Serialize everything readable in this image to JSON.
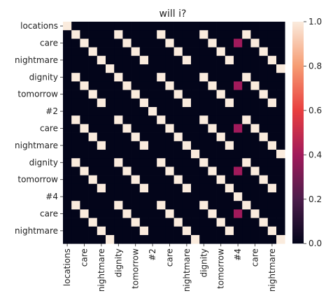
{
  "chart_data": {
    "type": "heatmap",
    "title": "will i?",
    "xlabel": "",
    "ylabel": "",
    "x_labels": [
      "locations",
      "",
      "care",
      "",
      "nightmare",
      "",
      "dignity",
      "",
      "tomorrow",
      "",
      "#2",
      "",
      "care",
      "",
      "nightmare",
      "",
      "dignity",
      "",
      "tomorrow",
      "",
      "#4",
      "",
      "care",
      "",
      "nightmare",
      ""
    ],
    "y_labels": [
      "locations",
      "",
      "care",
      "",
      "nightmare",
      "",
      "dignity",
      "",
      "tomorrow",
      "",
      "#2",
      "",
      "care",
      "",
      "nightmare",
      "",
      "dignity",
      "",
      "tomorrow",
      "",
      "#4",
      "",
      "care",
      "",
      "nightmare",
      ""
    ],
    "value_range": [
      0,
      1
    ],
    "colorbar_ticks": [
      0.0,
      0.2,
      0.4,
      0.6,
      0.8,
      1.0
    ],
    "colorbar_tick_labels": [
      "0.0",
      "0.2",
      "0.4",
      "0.6",
      "0.8",
      "1.0"
    ],
    "colormap": [
      "#03051a",
      "#4c1d4b",
      "#a11a5b",
      "#e83f3f",
      "#f69c73",
      "#faebdd"
    ],
    "values": [
      [
        1,
        0,
        0,
        0,
        0,
        0,
        0,
        0,
        0,
        0,
        0,
        0,
        0,
        0,
        0,
        0,
        0,
        0,
        0,
        0,
        0,
        0,
        0,
        0,
        0,
        0
      ],
      [
        0,
        1,
        0,
        0,
        0,
        0,
        1,
        0,
        0,
        0,
        0,
        1,
        0,
        0,
        0,
        0,
        1,
        0,
        0,
        0,
        0,
        1,
        0,
        0,
        0,
        0
      ],
      [
        0,
        0,
        1,
        0,
        0,
        0,
        0,
        1,
        0,
        0,
        0,
        0,
        1,
        0,
        0,
        0,
        0,
        1,
        0,
        0,
        0.4,
        0,
        1,
        0,
        0,
        0
      ],
      [
        0,
        0,
        0,
        1,
        0,
        0,
        0,
        0,
        1,
        0,
        0,
        0,
        0,
        1,
        0,
        0,
        0,
        0,
        1,
        0,
        0,
        0,
        0,
        1,
        0,
        0
      ],
      [
        0,
        0,
        0,
        0,
        1,
        0,
        0,
        0,
        0,
        1,
        0,
        0,
        0,
        0,
        1,
        0,
        0,
        0,
        0,
        1,
        0,
        0,
        0,
        0,
        1,
        0
      ],
      [
        0,
        0,
        0,
        0,
        0,
        1,
        0,
        0,
        0,
        0,
        0,
        0,
        0,
        0,
        0,
        0,
        0,
        0,
        0,
        0,
        0,
        0,
        0,
        0,
        0,
        1
      ],
      [
        0,
        1,
        0,
        0,
        0,
        0,
        1,
        0,
        0,
        0,
        0,
        1,
        0,
        0,
        0,
        0,
        1,
        0,
        0,
        0,
        0,
        1,
        0,
        0,
        0,
        0
      ],
      [
        0,
        0,
        1,
        0,
        0,
        0,
        0,
        1,
        0,
        0,
        0,
        0,
        1,
        0,
        0,
        0,
        0,
        1,
        0,
        0,
        0.4,
        0,
        1,
        0,
        0,
        0
      ],
      [
        0,
        0,
        0,
        1,
        0,
        0,
        0,
        0,
        1,
        0,
        0,
        0,
        0,
        1,
        0,
        0,
        0,
        0,
        1,
        0,
        0,
        0,
        0,
        1,
        0,
        0
      ],
      [
        0,
        0,
        0,
        0,
        1,
        0,
        0,
        0,
        0,
        1,
        0,
        0,
        0,
        0,
        1,
        0,
        0,
        0,
        0,
        1,
        0,
        0,
        0,
        0,
        1,
        0
      ],
      [
        0,
        0,
        0,
        0,
        0,
        0,
        0,
        0,
        0,
        0,
        1,
        0,
        0,
        0,
        0,
        0,
        0,
        0,
        0,
        0,
        0,
        0,
        0,
        0,
        0,
        0
      ],
      [
        0,
        1,
        0,
        0,
        0,
        0,
        1,
        0,
        0,
        0,
        0,
        1,
        0,
        0,
        0,
        0,
        1,
        0,
        0,
        0,
        0,
        1,
        0,
        0,
        0,
        0
      ],
      [
        0,
        0,
        1,
        0,
        0,
        0,
        0,
        1,
        0,
        0,
        0,
        0,
        1,
        0,
        0,
        0,
        0,
        1,
        0,
        0,
        0.4,
        0,
        1,
        0,
        0,
        0
      ],
      [
        0,
        0,
        0,
        1,
        0,
        0,
        0,
        0,
        1,
        0,
        0,
        0,
        0,
        1,
        0,
        0,
        0,
        0,
        1,
        0,
        0,
        0,
        0,
        1,
        0,
        0
      ],
      [
        0,
        0,
        0,
        0,
        1,
        0,
        0,
        0,
        0,
        1,
        0,
        0,
        0,
        0,
        1,
        0,
        0,
        0,
        0,
        1,
        0,
        0,
        0,
        0,
        1,
        0
      ],
      [
        0,
        0,
        0,
        0,
        0,
        0,
        0,
        0,
        0,
        0,
        0,
        0,
        0,
        0,
        0,
        1,
        0,
        0,
        0,
        0,
        0,
        0,
        0,
        0,
        0,
        1
      ],
      [
        0,
        1,
        0,
        0,
        0,
        0,
        1,
        0,
        0,
        0,
        0,
        1,
        0,
        0,
        0,
        0,
        1,
        0,
        0,
        0,
        0,
        1,
        0,
        0,
        0,
        0
      ],
      [
        0,
        0,
        1,
        0,
        0,
        0,
        0,
        1,
        0,
        0,
        0,
        0,
        1,
        0,
        0,
        0,
        0,
        1,
        0,
        0,
        0.4,
        0,
        1,
        0,
        0,
        0
      ],
      [
        0,
        0,
        0,
        1,
        0,
        0,
        0,
        0,
        1,
        0,
        0,
        0,
        0,
        1,
        0,
        0,
        0,
        0,
        1,
        0,
        0,
        0,
        0,
        1,
        0,
        0
      ],
      [
        0,
        0,
        0,
        0,
        1,
        0,
        0,
        0,
        0,
        1,
        0,
        0,
        0,
        0,
        1,
        0,
        0,
        0,
        0,
        1,
        0,
        0,
        0,
        0,
        1,
        0
      ],
      [
        0,
        0,
        0,
        0,
        0,
        0,
        0,
        0,
        0,
        0,
        0,
        0,
        0,
        0,
        0,
        0,
        0,
        0,
        0,
        0,
        1,
        0,
        0,
        0,
        0,
        0
      ],
      [
        0,
        1,
        0,
        0,
        0,
        0,
        1,
        0,
        0,
        0,
        0,
        1,
        0,
        0,
        0,
        0,
        1,
        0,
        0,
        0,
        0,
        1,
        0,
        0,
        0,
        0
      ],
      [
        0,
        0,
        1,
        0,
        0,
        0,
        0,
        1,
        0,
        0,
        0,
        0,
        1,
        0,
        0,
        0,
        0,
        1,
        0,
        0,
        0.4,
        0,
        1,
        0,
        0,
        0
      ],
      [
        0,
        0,
        0,
        1,
        0,
        0,
        0,
        0,
        1,
        0,
        0,
        0,
        0,
        1,
        0,
        0,
        0,
        0,
        1,
        0,
        0,
        0,
        0,
        1,
        0,
        0
      ],
      [
        0,
        0,
        0,
        0,
        1,
        0,
        0,
        0,
        0,
        1,
        0,
        0,
        0,
        0,
        1,
        0,
        0,
        0,
        0,
        1,
        0,
        0,
        0,
        0,
        1,
        0
      ],
      [
        0,
        0,
        0,
        0,
        0,
        1,
        0,
        0,
        0,
        0,
        0,
        0,
        0,
        0,
        0,
        1,
        0,
        0,
        0,
        0,
        0,
        0,
        0,
        0,
        0,
        1
      ]
    ]
  }
}
